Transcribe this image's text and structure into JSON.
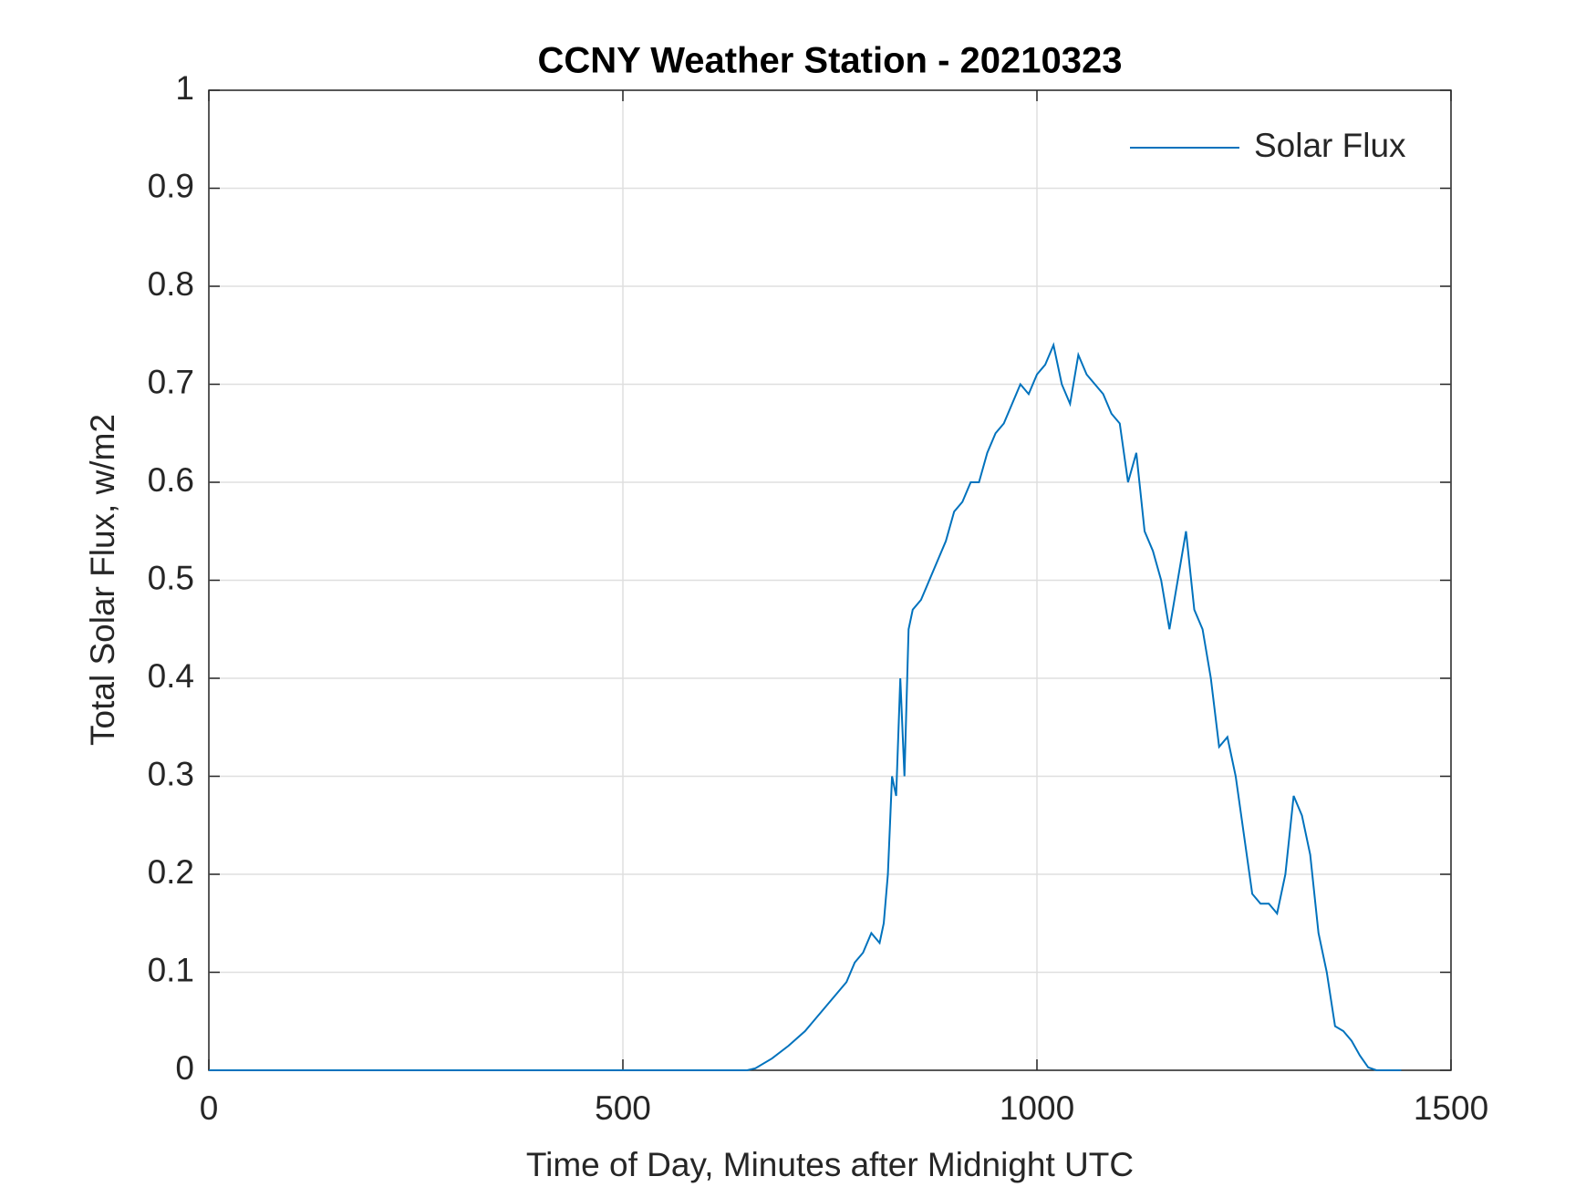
{
  "chart_data": {
    "type": "line",
    "title": "CCNY Weather Station - 20210323",
    "x_label": "Time of Day, Minutes after Midnight UTC",
    "y_label": "Total Solar Flux, w/m2",
    "x": [
      0,
      650,
      660,
      680,
      700,
      720,
      740,
      760,
      770,
      780,
      790,
      800,
      810,
      815,
      820,
      825,
      830,
      835,
      840,
      845,
      850,
      860,
      870,
      880,
      890,
      900,
      910,
      920,
      930,
      940,
      950,
      960,
      970,
      980,
      990,
      1000,
      1010,
      1020,
      1030,
      1040,
      1050,
      1060,
      1070,
      1080,
      1090,
      1100,
      1110,
      1120,
      1130,
      1140,
      1150,
      1160,
      1170,
      1180,
      1190,
      1200,
      1210,
      1220,
      1230,
      1240,
      1250,
      1260,
      1270,
      1280,
      1290,
      1300,
      1310,
      1320,
      1330,
      1340,
      1350,
      1360,
      1370,
      1380,
      1390,
      1400,
      1410,
      1440
    ],
    "series": [
      {
        "name": "Solar Flux",
        "color": "#0072bd",
        "values": [
          0,
          0,
          0.002,
          0.012,
          0.025,
          0.04,
          0.06,
          0.08,
          0.09,
          0.11,
          0.12,
          0.14,
          0.13,
          0.15,
          0.2,
          0.3,
          0.28,
          0.4,
          0.3,
          0.45,
          0.47,
          0.48,
          0.5,
          0.52,
          0.54,
          0.57,
          0.58,
          0.6,
          0.6,
          0.63,
          0.65,
          0.66,
          0.68,
          0.7,
          0.69,
          0.71,
          0.72,
          0.74,
          0.7,
          0.68,
          0.73,
          0.71,
          0.7,
          0.69,
          0.67,
          0.66,
          0.6,
          0.63,
          0.55,
          0.53,
          0.5,
          0.45,
          0.5,
          0.55,
          0.47,
          0.45,
          0.4,
          0.33,
          0.34,
          0.3,
          0.24,
          0.18,
          0.17,
          0.17,
          0.16,
          0.2,
          0.28,
          0.26,
          0.22,
          0.14,
          0.1,
          0.045,
          0.04,
          0.03,
          0.015,
          0.003,
          0,
          0
        ]
      }
    ],
    "xlim": [
      0,
      1500
    ],
    "xticks": [
      0,
      500,
      1000,
      1500
    ],
    "ylim": [
      0,
      1
    ],
    "yticks": [
      0,
      0.1,
      0.2,
      0.3,
      0.4,
      0.5,
      0.6,
      0.7,
      0.8,
      0.9,
      1
    ],
    "grid": true,
    "legend": "northeast"
  }
}
